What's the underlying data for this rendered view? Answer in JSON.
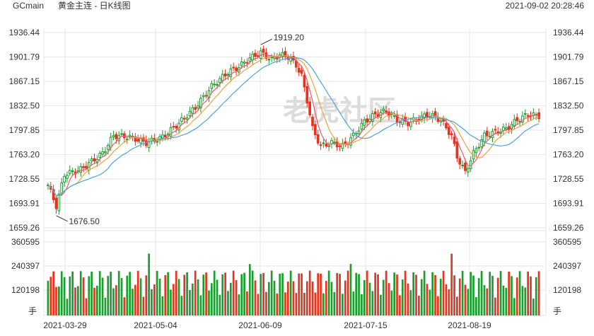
{
  "header": {
    "symbol": "GCmain",
    "name": "黄金主连 - 日K线图",
    "datetime": "2021-09-02 20:28:46"
  },
  "watermark": "老虎社区",
  "unit_label": "手",
  "colors": {
    "up": "#1a9e2f",
    "down": "#e8331f",
    "ma5": "#e85a6f",
    "ma10": "#f0a040",
    "ma20": "#4ea4d8",
    "grid": "#e6e6e6",
    "axis_text": "#333333"
  },
  "chart_data": [
    {
      "type": "candlestick",
      "price_ticks": [
        "1936.44",
        "1901.79",
        "1867.15",
        "1832.50",
        "1797.85",
        "1763.20",
        "1728.55",
        "1693.91",
        "1659.26"
      ],
      "ylim": [
        1659.26,
        1936.44
      ],
      "x_ticks": [
        "2021-03-29",
        "2021-05-04",
        "2021-06-09",
        "2021-07-15",
        "2021-08-19"
      ],
      "annotations": [
        {
          "text": "1919.20",
          "value": 1919.2,
          "kind": "high"
        },
        {
          "text": "1676.50",
          "value": 1676.5,
          "kind": "low"
        }
      ]
    },
    {
      "type": "bar",
      "volume_ticks": [
        "360595",
        "240397",
        "120198"
      ],
      "ylim": [
        0,
        360595
      ]
    }
  ]
}
